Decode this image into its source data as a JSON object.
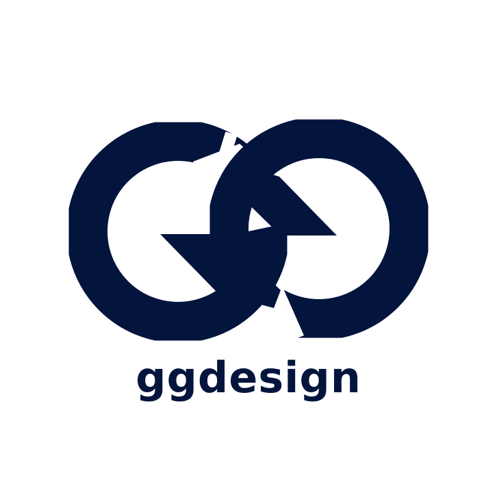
{
  "brand": {
    "wordmark": "ggdesign",
    "color": "#03143d",
    "background": "#ffffff"
  },
  "logo": {
    "icon": "gg-infinity-logo-icon"
  }
}
